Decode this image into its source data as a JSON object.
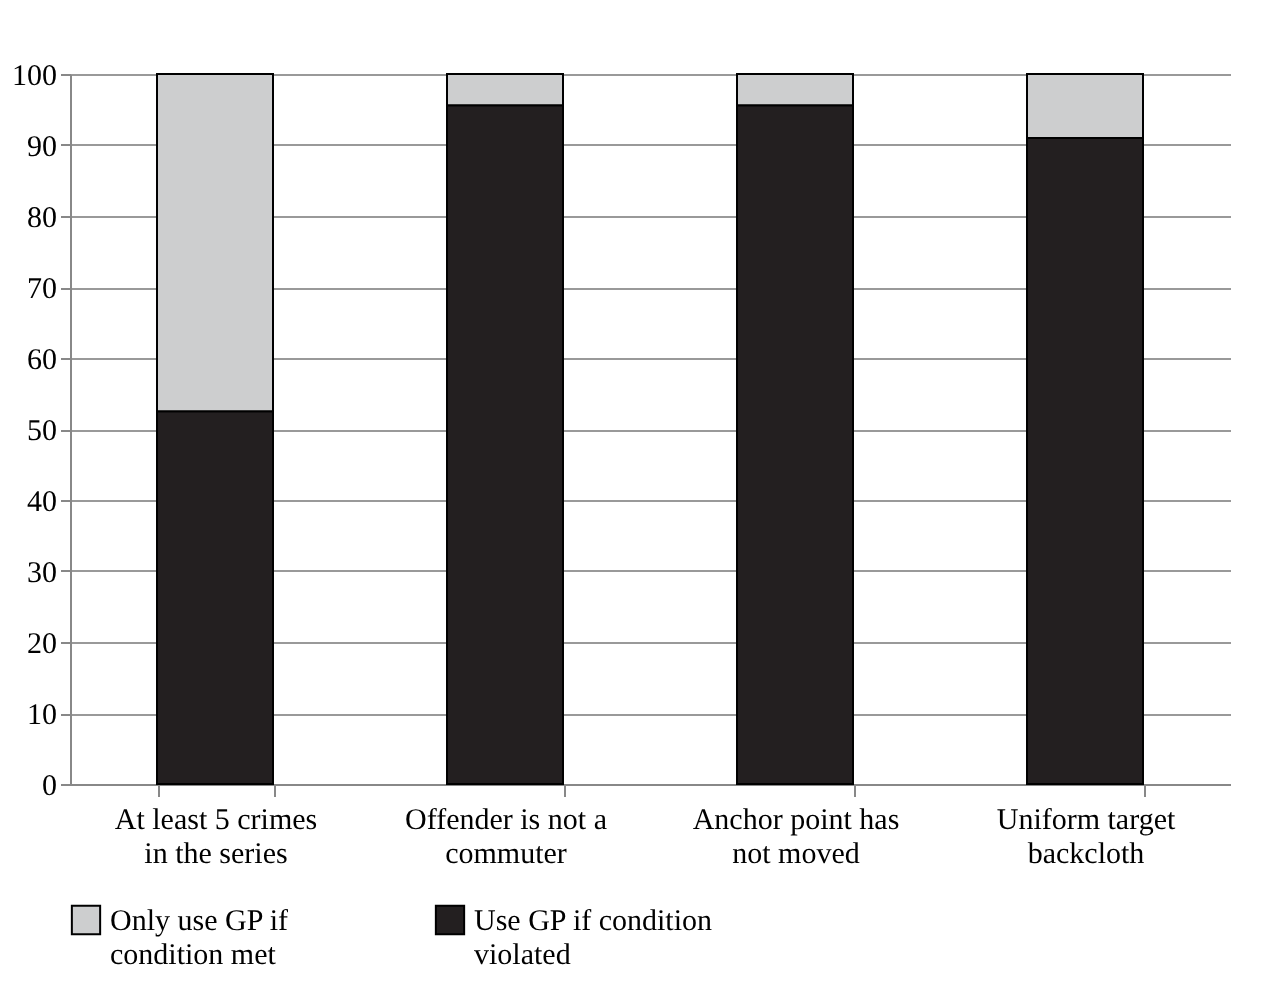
{
  "chart_data": {
    "type": "bar",
    "stacked": true,
    "categories": [
      "At least 5 crimes in the series",
      "Offender is not a commuter",
      "Anchor point has not moved",
      "Uniform target backcloth"
    ],
    "series": [
      {
        "name": "Use GP if condition violated",
        "color": "#231f20",
        "values": [
          52.5,
          95.6,
          95.6,
          91
        ]
      },
      {
        "name": "Only use GP if condition met",
        "color": "#cdcecf",
        "values": [
          47.5,
          4.4,
          4.4,
          9
        ]
      }
    ],
    "ylim": [
      0,
      100
    ],
    "yticks": [
      0,
      10,
      20,
      30,
      40,
      50,
      60,
      70,
      80,
      90,
      100
    ],
    "grid": "y",
    "legend": "bottom"
  }
}
